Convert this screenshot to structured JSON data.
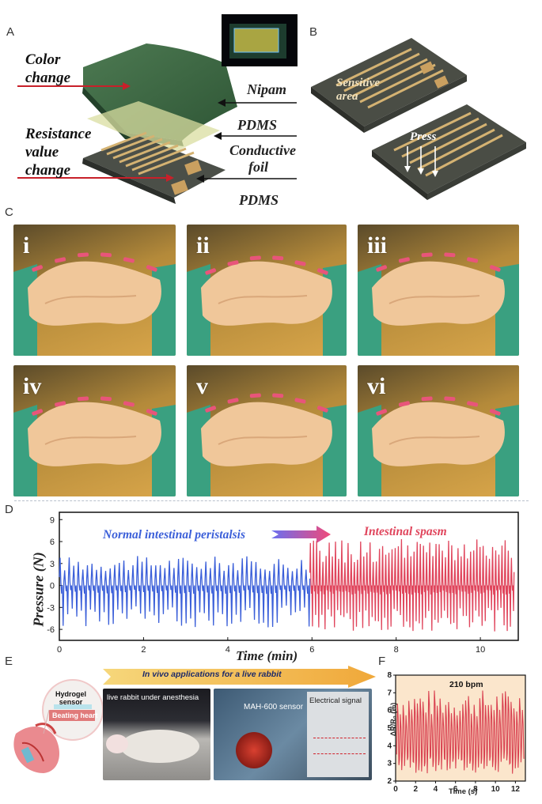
{
  "panel_labels": {
    "a": "A",
    "b": "B",
    "c": "C",
    "d": "D",
    "e": "E",
    "f": "F"
  },
  "panel_a": {
    "color_change": [
      "Color",
      "change"
    ],
    "resistance_change": [
      "Resistance",
      "value",
      "change"
    ],
    "layers": {
      "nipam": "Nipam",
      "pdms_top": "PDMS",
      "conductive": [
        "Conductive",
        "foil"
      ],
      "pdms_bottom": "PDMS"
    }
  },
  "panel_b": {
    "sensitive": [
      "Sensitive",
      "area"
    ],
    "press": "Press"
  },
  "panel_c": {
    "labels": [
      "i",
      "ii",
      "iii",
      "iv",
      "v",
      "vi"
    ]
  },
  "panel_d": {
    "ylabel": "Pressure (N)",
    "xlabel": "Time (min)",
    "normal_label": "Normal intestinal peristalsis",
    "spasm_label": "Intestinal spasm",
    "colors": {
      "normal": "#3b5fd9",
      "spasm": "#e0455c"
    }
  },
  "panel_e": {
    "banner": "In vivo applications for a live rabbit",
    "hydrogel_sensor": [
      "Hydrogel",
      "sensor"
    ],
    "beating_heart": "Beating heart",
    "rabbit": "live rabbit under anesthesia",
    "sensor_name": "MAH-600 sensor",
    "electrical_signal": "Electrical signal"
  },
  "panel_f": {
    "annotation": "210 bpm",
    "ylabel": "ΔR/R₀ (%)",
    "xlabel": "Time (s)",
    "color": "#d94050"
  },
  "chart_data": [
    {
      "type": "line",
      "panel": "D",
      "xlabel": "Time (min)",
      "ylabel": "Pressure (N)",
      "xlim": [
        0,
        10.9
      ],
      "ylim": [
        -7.5,
        10
      ],
      "xticks": [
        0,
        2,
        4,
        6,
        8,
        10
      ],
      "yticks": [
        9,
        6,
        3,
        0,
        -3,
        -6
      ],
      "series": [
        {
          "name": "Normal intestinal peristalsis",
          "x_range": [
            0,
            5.95
          ],
          "peaks_approx": 3.5,
          "troughs_approx": -5,
          "oscillations": 55
        },
        {
          "name": "Intestinal spasm",
          "x_range": [
            5.95,
            10.8
          ],
          "peaks_approx": 5.5,
          "troughs_approx": -5.5,
          "oscillations": 65
        }
      ]
    },
    {
      "type": "line",
      "panel": "F",
      "xlabel": "Time (s)",
      "ylabel": "ΔR/R₀ (%)",
      "xlim": [
        0,
        13
      ],
      "ylim": [
        2,
        8
      ],
      "xticks": [
        0,
        2,
        4,
        6,
        8,
        10,
        12
      ],
      "yticks": [
        2,
        3,
        4,
        5,
        6,
        7,
        8
      ],
      "series": [
        {
          "range": [
            2.4,
            7.2
          ],
          "rate": "210 bpm"
        }
      ]
    }
  ]
}
